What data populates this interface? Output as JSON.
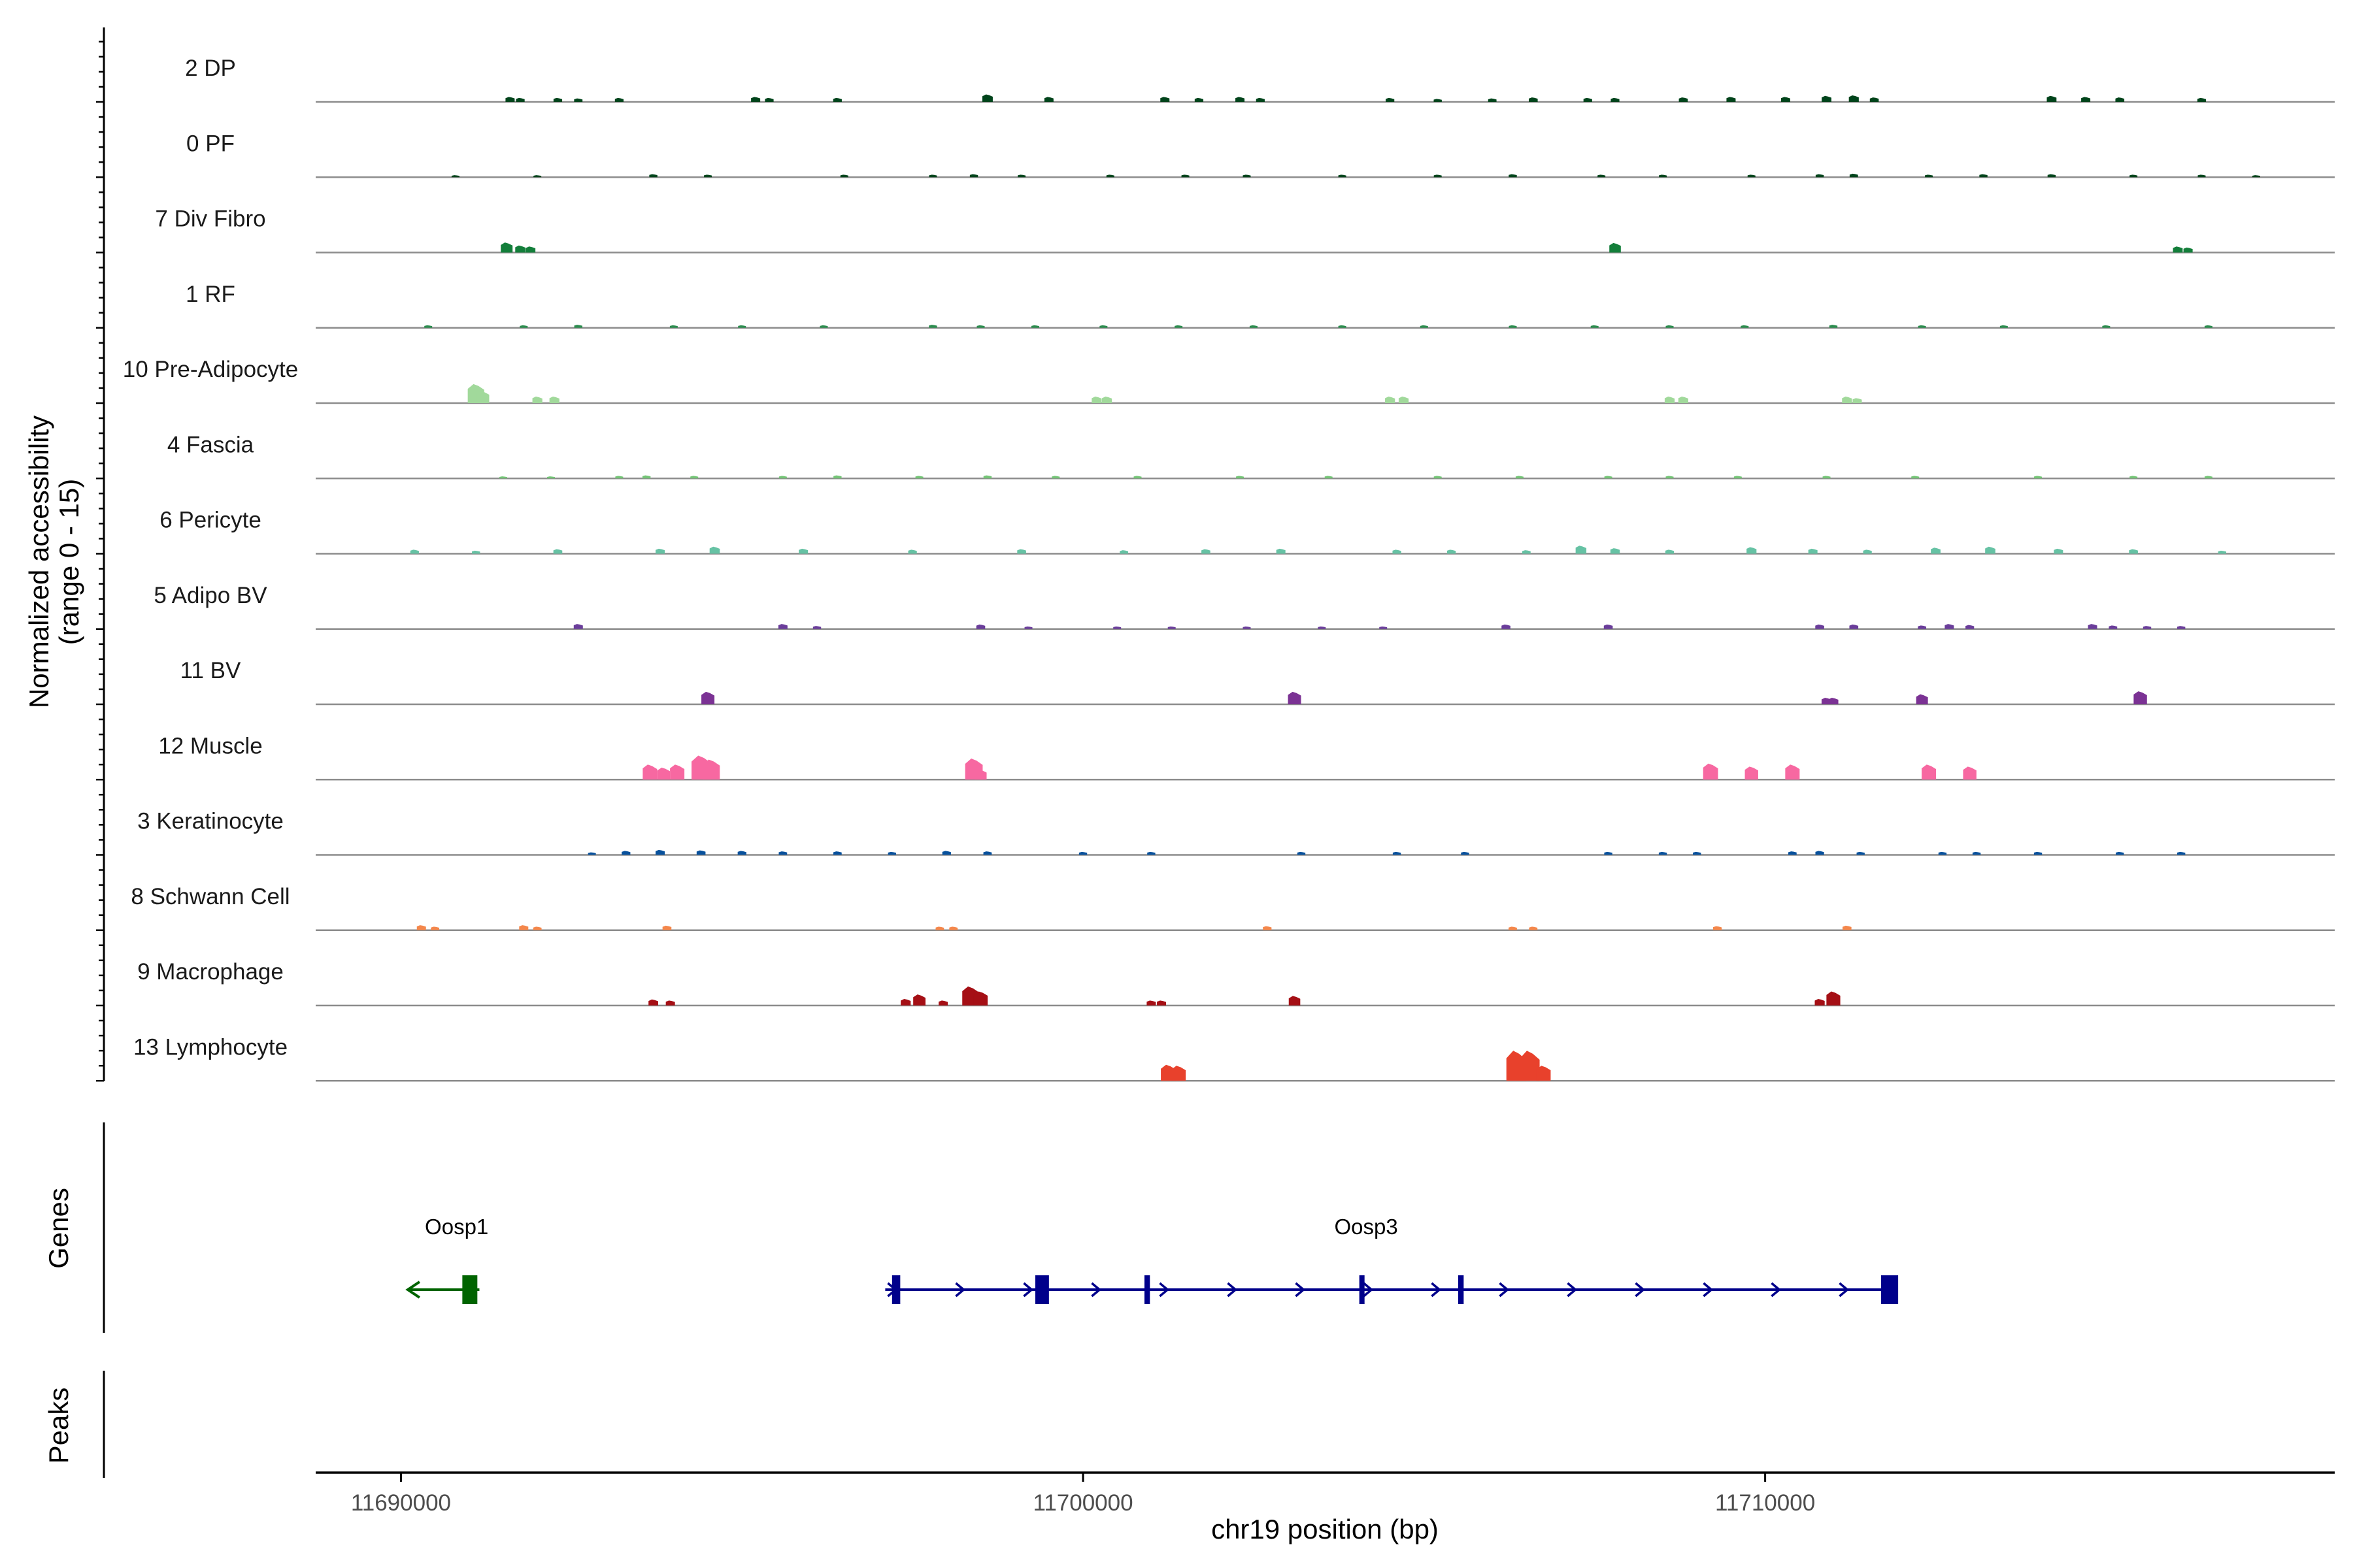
{
  "chart_data": {
    "type": "area",
    "title": "",
    "xlabel": "chr19 position (bp)",
    "ylabel": "Normalized accessibility\n(range 0 - 15)",
    "xlim": [
      11688750,
      11718350
    ],
    "ylim": [
      0,
      15
    ],
    "x_ticks": [
      11690000,
      11700000,
      11710000
    ],
    "x_tick_labels": [
      "11690000",
      "11700000",
      "11710000"
    ],
    "series": [
      {
        "name": "2 DP",
        "color": "#00441b",
        "peaks": [
          [
            11691600,
            1.0
          ],
          [
            11691750,
            0.8
          ],
          [
            11692300,
            0.8
          ],
          [
            11692600,
            0.7
          ],
          [
            11693200,
            0.8
          ],
          [
            11695200,
            1.0
          ],
          [
            11695400,
            0.8
          ],
          [
            11696400,
            0.8
          ],
          [
            11698600,
            1.5
          ],
          [
            11699500,
            1.0
          ],
          [
            11701200,
            1.0
          ],
          [
            11701700,
            0.8
          ],
          [
            11702300,
            1.0
          ],
          [
            11702600,
            0.8
          ],
          [
            11704500,
            0.8
          ],
          [
            11705200,
            0.6
          ],
          [
            11706000,
            0.7
          ],
          [
            11706600,
            0.9
          ],
          [
            11707400,
            0.8
          ],
          [
            11707800,
            0.8
          ],
          [
            11708800,
            0.9
          ],
          [
            11709500,
            1.0
          ],
          [
            11710300,
            1.0
          ],
          [
            11710900,
            1.2
          ],
          [
            11711300,
            1.3
          ],
          [
            11711600,
            0.9
          ],
          [
            11714200,
            1.2
          ],
          [
            11714700,
            1.0
          ],
          [
            11715200,
            0.9
          ],
          [
            11716400,
            0.8
          ]
        ]
      },
      {
        "name": "0 PF",
        "color": "#00441b",
        "peaks": [
          [
            11690800,
            0.4
          ],
          [
            11692000,
            0.4
          ],
          [
            11693700,
            0.6
          ],
          [
            11694500,
            0.5
          ],
          [
            11696500,
            0.5
          ],
          [
            11697800,
            0.5
          ],
          [
            11698400,
            0.6
          ],
          [
            11699100,
            0.5
          ],
          [
            11700400,
            0.5
          ],
          [
            11701500,
            0.5
          ],
          [
            11702400,
            0.5
          ],
          [
            11703800,
            0.5
          ],
          [
            11705200,
            0.5
          ],
          [
            11706300,
            0.6
          ],
          [
            11707600,
            0.5
          ],
          [
            11708500,
            0.5
          ],
          [
            11709800,
            0.5
          ],
          [
            11710800,
            0.6
          ],
          [
            11711300,
            0.7
          ],
          [
            11712400,
            0.5
          ],
          [
            11713200,
            0.6
          ],
          [
            11714200,
            0.6
          ],
          [
            11715400,
            0.5
          ],
          [
            11716400,
            0.5
          ],
          [
            11717200,
            0.4
          ]
        ]
      },
      {
        "name": "7 Div Fibro",
        "color": "#137e3a",
        "peaks": [
          [
            11691550,
            2.0
          ],
          [
            11691750,
            1.4
          ],
          [
            11691900,
            1.2
          ],
          [
            11707800,
            1.9
          ],
          [
            11716050,
            1.2
          ],
          [
            11716200,
            1.0
          ]
        ]
      },
      {
        "name": "1 RF",
        "color": "#2c8c4e",
        "peaks": [
          [
            11690400,
            0.5
          ],
          [
            11691800,
            0.5
          ],
          [
            11692600,
            0.6
          ],
          [
            11694000,
            0.5
          ],
          [
            11695000,
            0.5
          ],
          [
            11696200,
            0.5
          ],
          [
            11697800,
            0.6
          ],
          [
            11698500,
            0.5
          ],
          [
            11699300,
            0.5
          ],
          [
            11700300,
            0.5
          ],
          [
            11701400,
            0.5
          ],
          [
            11702500,
            0.5
          ],
          [
            11703800,
            0.5
          ],
          [
            11705000,
            0.5
          ],
          [
            11706300,
            0.5
          ],
          [
            11707500,
            0.5
          ],
          [
            11708600,
            0.5
          ],
          [
            11709700,
            0.5
          ],
          [
            11711000,
            0.6
          ],
          [
            11712300,
            0.5
          ],
          [
            11713500,
            0.5
          ],
          [
            11715000,
            0.5
          ],
          [
            11716500,
            0.5
          ]
        ]
      },
      {
        "name": "10 Pre-Adipocyte",
        "color": "#a1d99b",
        "peaks": [
          [
            11691100,
            3.8
          ],
          [
            11691200,
            2.4
          ],
          [
            11692000,
            1.3
          ],
          [
            11692250,
            1.3
          ],
          [
            11700200,
            1.3
          ],
          [
            11700350,
            1.3
          ],
          [
            11704500,
            1.3
          ],
          [
            11704700,
            1.3
          ],
          [
            11708600,
            1.3
          ],
          [
            11708800,
            1.3
          ],
          [
            11711200,
            1.3
          ],
          [
            11711350,
            1.0
          ]
        ]
      },
      {
        "name": "4 Fascia",
        "color": "#74c476",
        "peaks": [
          [
            11691500,
            0.4
          ],
          [
            11692200,
            0.4
          ],
          [
            11693200,
            0.5
          ],
          [
            11693600,
            0.6
          ],
          [
            11694300,
            0.5
          ],
          [
            11695600,
            0.5
          ],
          [
            11696400,
            0.6
          ],
          [
            11697600,
            0.5
          ],
          [
            11698600,
            0.6
          ],
          [
            11699600,
            0.5
          ],
          [
            11700800,
            0.5
          ],
          [
            11702300,
            0.5
          ],
          [
            11703600,
            0.5
          ],
          [
            11705200,
            0.5
          ],
          [
            11706400,
            0.5
          ],
          [
            11707700,
            0.5
          ],
          [
            11708600,
            0.5
          ],
          [
            11709600,
            0.5
          ],
          [
            11710900,
            0.5
          ],
          [
            11712200,
            0.5
          ],
          [
            11714000,
            0.5
          ],
          [
            11715400,
            0.5
          ],
          [
            11716500,
            0.5
          ]
        ]
      },
      {
        "name": "6 Pericyte",
        "color": "#66c2a4",
        "peaks": [
          [
            11690200,
            0.8
          ],
          [
            11691100,
            0.6
          ],
          [
            11692300,
            0.9
          ],
          [
            11693800,
            1.0
          ],
          [
            11694600,
            1.4
          ],
          [
            11695900,
            1.0
          ],
          [
            11697500,
            0.8
          ],
          [
            11699100,
            0.9
          ],
          [
            11700600,
            0.7
          ],
          [
            11701800,
            0.9
          ],
          [
            11702900,
            1.0
          ],
          [
            11704600,
            0.8
          ],
          [
            11705400,
            0.8
          ],
          [
            11706500,
            0.7
          ],
          [
            11707300,
            1.6
          ],
          [
            11707800,
            1.1
          ],
          [
            11708600,
            0.8
          ],
          [
            11709800,
            1.3
          ],
          [
            11710700,
            1.0
          ],
          [
            11711500,
            0.8
          ],
          [
            11712500,
            1.2
          ],
          [
            11713300,
            1.4
          ],
          [
            11714300,
            1.0
          ],
          [
            11715400,
            0.9
          ],
          [
            11716700,
            0.6
          ]
        ]
      },
      {
        "name": "5 Adipo BV",
        "color": "#6a3d9a",
        "peaks": [
          [
            11692600,
            1.0
          ],
          [
            11695600,
            1.0
          ],
          [
            11696100,
            0.6
          ],
          [
            11698500,
            0.9
          ],
          [
            11699200,
            0.5
          ],
          [
            11700500,
            0.5
          ],
          [
            11701300,
            0.5
          ],
          [
            11702400,
            0.5
          ],
          [
            11703500,
            0.5
          ],
          [
            11704400,
            0.5
          ],
          [
            11706200,
            0.9
          ],
          [
            11707700,
            0.9
          ],
          [
            11710800,
            0.9
          ],
          [
            11711300,
            0.9
          ],
          [
            11712300,
            0.7
          ],
          [
            11712700,
            1.0
          ],
          [
            11713000,
            0.8
          ],
          [
            11714800,
            1.0
          ],
          [
            11715100,
            0.7
          ],
          [
            11715600,
            0.6
          ],
          [
            11716100,
            0.6
          ]
        ]
      },
      {
        "name": "11 BV",
        "color": "#7b3294",
        "peaks": [
          [
            11694500,
            2.5
          ],
          [
            11703100,
            2.5
          ],
          [
            11710900,
            1.3
          ],
          [
            11711000,
            1.3
          ],
          [
            11712300,
            2.0
          ],
          [
            11715500,
            2.6
          ]
        ]
      },
      {
        "name": "12 Muscle",
        "color": "#f768a1",
        "peaks": [
          [
            11693650,
            3.0
          ],
          [
            11693850,
            2.4
          ],
          [
            11694050,
            3.0
          ],
          [
            11694400,
            4.8
          ],
          [
            11694550,
            4.0
          ],
          [
            11698400,
            4.2
          ],
          [
            11698500,
            2.0
          ],
          [
            11709200,
            3.2
          ],
          [
            11709800,
            2.6
          ],
          [
            11710400,
            3.0
          ],
          [
            11712400,
            3.0
          ],
          [
            11713000,
            2.6
          ]
        ]
      },
      {
        "name": "3 Keratinocyte",
        "color": "#08519c",
        "peaks": [
          [
            11692800,
            0.5
          ],
          [
            11693300,
            0.8
          ],
          [
            11693800,
            1.0
          ],
          [
            11694400,
            0.9
          ],
          [
            11695000,
            0.8
          ],
          [
            11695600,
            0.7
          ],
          [
            11696400,
            0.7
          ],
          [
            11697200,
            0.6
          ],
          [
            11698000,
            0.8
          ],
          [
            11698600,
            0.7
          ],
          [
            11700000,
            0.6
          ],
          [
            11701000,
            0.6
          ],
          [
            11703200,
            0.6
          ],
          [
            11704600,
            0.6
          ],
          [
            11705600,
            0.6
          ],
          [
            11707700,
            0.6
          ],
          [
            11708500,
            0.6
          ],
          [
            11709000,
            0.6
          ],
          [
            11710400,
            0.7
          ],
          [
            11710800,
            0.8
          ],
          [
            11711400,
            0.6
          ],
          [
            11712600,
            0.6
          ],
          [
            11713100,
            0.6
          ],
          [
            11714000,
            0.6
          ],
          [
            11715200,
            0.6
          ],
          [
            11716100,
            0.6
          ]
        ]
      },
      {
        "name": "8 Schwann Cell",
        "color": "#f4874b",
        "peaks": [
          [
            11690300,
            1.0
          ],
          [
            11690500,
            0.7
          ],
          [
            11691800,
            1.0
          ],
          [
            11692000,
            0.7
          ],
          [
            11693900,
            0.9
          ],
          [
            11697900,
            0.7
          ],
          [
            11698100,
            0.7
          ],
          [
            11702700,
            0.8
          ],
          [
            11706300,
            0.7
          ],
          [
            11706600,
            0.7
          ],
          [
            11709300,
            0.8
          ],
          [
            11711200,
            0.9
          ]
        ]
      },
      {
        "name": "9 Macrophage",
        "color": "#a50f15",
        "peaks": [
          [
            11693700,
            1.2
          ],
          [
            11693950,
            1.0
          ],
          [
            11697400,
            1.3
          ],
          [
            11697600,
            2.2
          ],
          [
            11697950,
            1.0
          ],
          [
            11698350,
            3.8
          ],
          [
            11698500,
            2.8
          ],
          [
            11701000,
            1.0
          ],
          [
            11701150,
            1.0
          ],
          [
            11703100,
            1.9
          ],
          [
            11710800,
            1.3
          ],
          [
            11711000,
            2.8
          ]
        ]
      },
      {
        "name": "13 Lymphocyte",
        "color": "#e8412c",
        "peaks": [
          [
            11701250,
            3.2
          ],
          [
            11701400,
            3.0
          ],
          [
            11706350,
            6.0
          ],
          [
            11706550,
            6.0
          ],
          [
            11706750,
            3.0
          ]
        ]
      }
    ],
    "genes": [
      {
        "name": "Oosp1",
        "strand": "-",
        "start": 11690100,
        "end": 11691150,
        "color": "#006400",
        "exons": [
          [
            11690900,
            11691120
          ]
        ]
      },
      {
        "name": "Oosp3",
        "strand": "+",
        "start": 11697100,
        "end": 11711900,
        "color": "#00008b",
        "exons": [
          [
            11697200,
            11697320
          ],
          [
            11699300,
            11699500
          ],
          [
            11700900,
            11700980
          ],
          [
            11704050,
            11704080
          ],
          [
            11705500,
            11705580
          ],
          [
            11711700,
            11711950
          ]
        ]
      }
    ],
    "panels": {
      "genes_label": "Genes",
      "peaks_label": "Peaks"
    }
  }
}
